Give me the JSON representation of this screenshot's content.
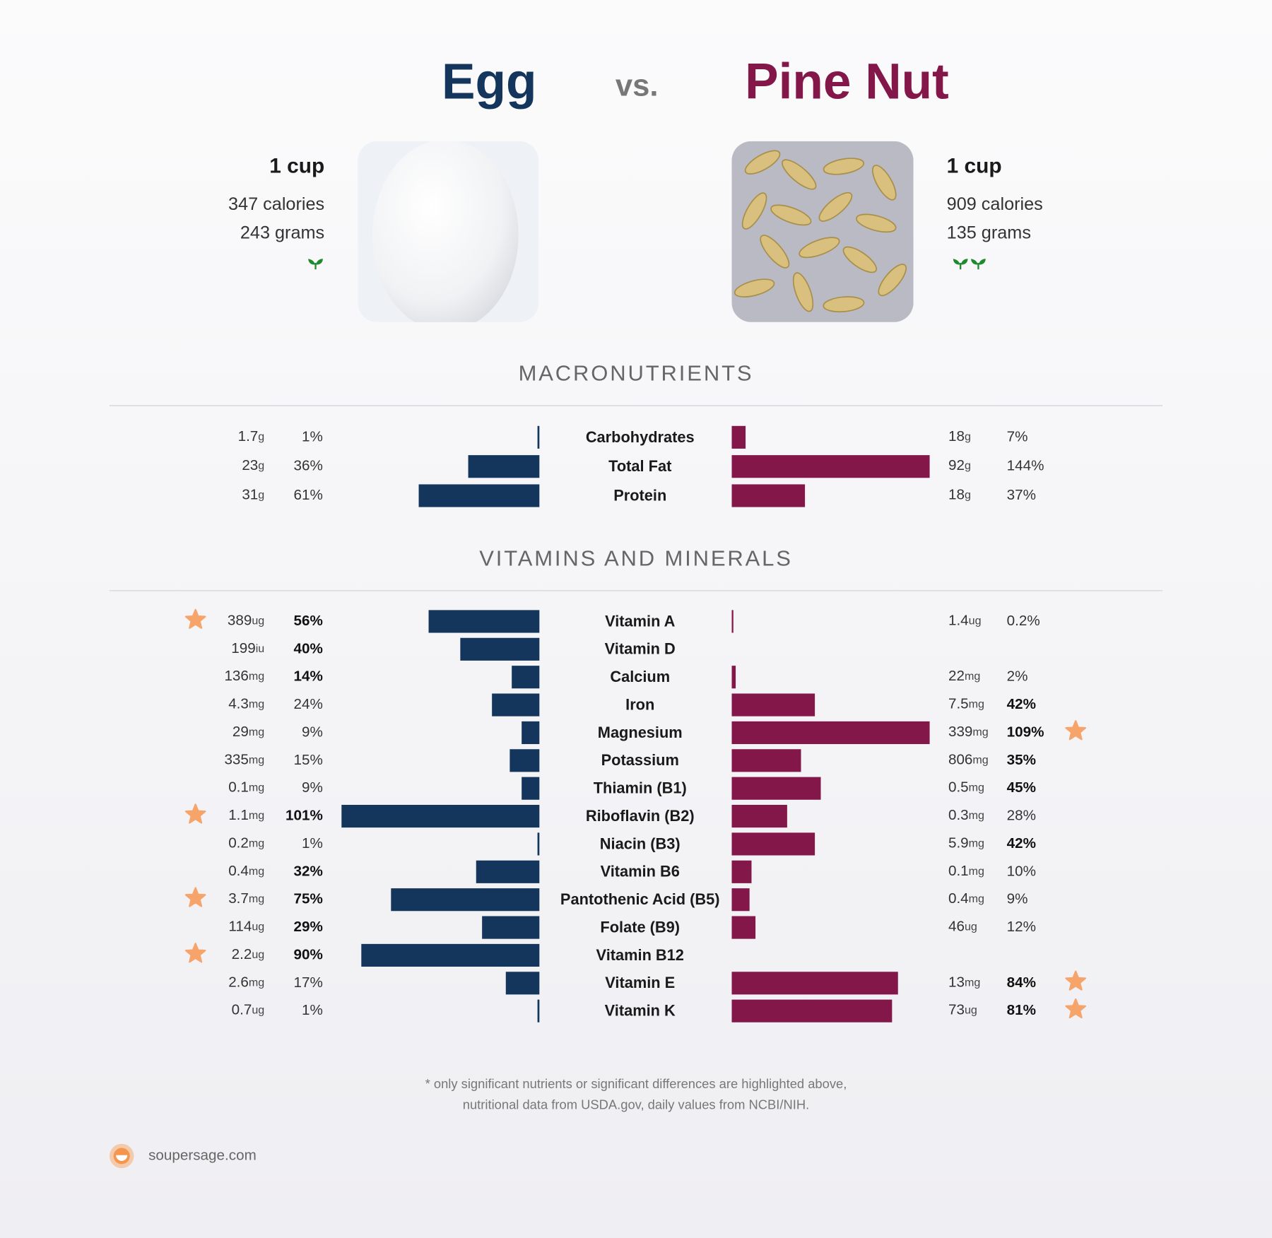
{
  "header": {
    "left": {
      "name": "Egg",
      "serving": "1 cup",
      "calories": "347 calories",
      "grams": "243 grams",
      "sprouts": 1,
      "color": "#14365c"
    },
    "vs": "vs.",
    "right": {
      "name": "Pine Nut",
      "serving": "1 cup",
      "calories": "909 calories",
      "grams": "135 grams",
      "sprouts": 2,
      "color": "#84174a"
    }
  },
  "xlim": [
    0,
    100
  ],
  "sections": [
    {
      "title": "MACRONUTRIENTS",
      "rows": [
        {
          "nutrient": "Carbohydrates",
          "left": {
            "amount": 1.7,
            "unit": "g",
            "pct": 1,
            "pct_label": "1%",
            "bold": false,
            "star": false
          },
          "right": {
            "amount": 18,
            "unit": "g",
            "pct": 7,
            "pct_label": "7%",
            "bold": false,
            "star": false
          }
        },
        {
          "nutrient": "Total Fat",
          "left": {
            "amount": 23,
            "unit": "g",
            "pct": 36,
            "pct_label": "36%",
            "bold": false,
            "star": false
          },
          "right": {
            "amount": 92,
            "unit": "g",
            "pct": 144,
            "pct_label": "144%",
            "bold": false,
            "star": false
          }
        },
        {
          "nutrient": "Protein",
          "left": {
            "amount": 31,
            "unit": "g",
            "pct": 61,
            "pct_label": "61%",
            "bold": false,
            "star": false
          },
          "right": {
            "amount": 18,
            "unit": "g",
            "pct": 37,
            "pct_label": "37%",
            "bold": false,
            "star": false
          }
        }
      ]
    },
    {
      "title": "VITAMINS AND MINERALS",
      "rows": [
        {
          "nutrient": "Vitamin A",
          "left": {
            "amount": 389,
            "unit": "ug",
            "pct": 56,
            "pct_label": "56%",
            "bold": true,
            "star": true
          },
          "right": {
            "amount": 1.4,
            "unit": "ug",
            "pct": 0.2,
            "pct_label": "0.2%",
            "bold": false,
            "star": false
          }
        },
        {
          "nutrient": "Vitamin D",
          "left": {
            "amount": 199,
            "unit": "iu",
            "pct": 40,
            "pct_label": "40%",
            "bold": true,
            "star": false
          },
          "right": null
        },
        {
          "nutrient": "Calcium",
          "left": {
            "amount": 136,
            "unit": "mg",
            "pct": 14,
            "pct_label": "14%",
            "bold": true,
            "star": false
          },
          "right": {
            "amount": 22,
            "unit": "mg",
            "pct": 2,
            "pct_label": "2%",
            "bold": false,
            "star": false
          }
        },
        {
          "nutrient": "Iron",
          "left": {
            "amount": 4.3,
            "unit": "mg",
            "pct": 24,
            "pct_label": "24%",
            "bold": false,
            "star": false
          },
          "right": {
            "amount": 7.5,
            "unit": "mg",
            "pct": 42,
            "pct_label": "42%",
            "bold": true,
            "star": false
          }
        },
        {
          "nutrient": "Magnesium",
          "left": {
            "amount": 29,
            "unit": "mg",
            "pct": 9,
            "pct_label": "9%",
            "bold": false,
            "star": false
          },
          "right": {
            "amount": 339,
            "unit": "mg",
            "pct": 109,
            "pct_label": "109%",
            "bold": true,
            "star": true
          }
        },
        {
          "nutrient": "Potassium",
          "left": {
            "amount": 335,
            "unit": "mg",
            "pct": 15,
            "pct_label": "15%",
            "bold": false,
            "star": false
          },
          "right": {
            "amount": 806,
            "unit": "mg",
            "pct": 35,
            "pct_label": "35%",
            "bold": true,
            "star": false
          }
        },
        {
          "nutrient": "Thiamin (B1)",
          "left": {
            "amount": 0.1,
            "unit": "mg",
            "pct": 9,
            "pct_label": "9%",
            "bold": false,
            "star": false
          },
          "right": {
            "amount": 0.5,
            "unit": "mg",
            "pct": 45,
            "pct_label": "45%",
            "bold": true,
            "star": false
          }
        },
        {
          "nutrient": "Riboflavin (B2)",
          "left": {
            "amount": 1.1,
            "unit": "mg",
            "pct": 101,
            "pct_label": "101%",
            "bold": true,
            "star": true
          },
          "right": {
            "amount": 0.3,
            "unit": "mg",
            "pct": 28,
            "pct_label": "28%",
            "bold": false,
            "star": false
          }
        },
        {
          "nutrient": "Niacin (B3)",
          "left": {
            "amount": 0.2,
            "unit": "mg",
            "pct": 1,
            "pct_label": "1%",
            "bold": false,
            "star": false
          },
          "right": {
            "amount": 5.9,
            "unit": "mg",
            "pct": 42,
            "pct_label": "42%",
            "bold": true,
            "star": false
          }
        },
        {
          "nutrient": "Vitamin B6",
          "left": {
            "amount": 0.4,
            "unit": "mg",
            "pct": 32,
            "pct_label": "32%",
            "bold": true,
            "star": false
          },
          "right": {
            "amount": 0.1,
            "unit": "mg",
            "pct": 10,
            "pct_label": "10%",
            "bold": false,
            "star": false
          }
        },
        {
          "nutrient": "Pantothenic Acid (B5)",
          "left": {
            "amount": 3.7,
            "unit": "mg",
            "pct": 75,
            "pct_label": "75%",
            "bold": true,
            "star": true
          },
          "right": {
            "amount": 0.4,
            "unit": "mg",
            "pct": 9,
            "pct_label": "9%",
            "bold": false,
            "star": false
          }
        },
        {
          "nutrient": "Folate (B9)",
          "left": {
            "amount": 114,
            "unit": "ug",
            "pct": 29,
            "pct_label": "29%",
            "bold": true,
            "star": false
          },
          "right": {
            "amount": 46,
            "unit": "ug",
            "pct": 12,
            "pct_label": "12%",
            "bold": false,
            "star": false
          }
        },
        {
          "nutrient": "Vitamin B12",
          "left": {
            "amount": 2.2,
            "unit": "ug",
            "pct": 90,
            "pct_label": "90%",
            "bold": true,
            "star": true
          },
          "right": null
        },
        {
          "nutrient": "Vitamin E",
          "left": {
            "amount": 2.6,
            "unit": "mg",
            "pct": 17,
            "pct_label": "17%",
            "bold": false,
            "star": false
          },
          "right": {
            "amount": 13,
            "unit": "mg",
            "pct": 84,
            "pct_label": "84%",
            "bold": true,
            "star": true
          }
        },
        {
          "nutrient": "Vitamin K",
          "left": {
            "amount": 0.7,
            "unit": "ug",
            "pct": 1,
            "pct_label": "1%",
            "bold": false,
            "star": false
          },
          "right": {
            "amount": 73,
            "unit": "ug",
            "pct": 81,
            "pct_label": "81%",
            "bold": true,
            "star": true
          }
        }
      ]
    }
  ],
  "footer": {
    "note_lines": [
      "* only significant nutrients or significant differences are highlighted above,",
      "nutritional data from USDA.gov, daily values from NCBI/NIH."
    ],
    "site": "soupersage.com"
  }
}
